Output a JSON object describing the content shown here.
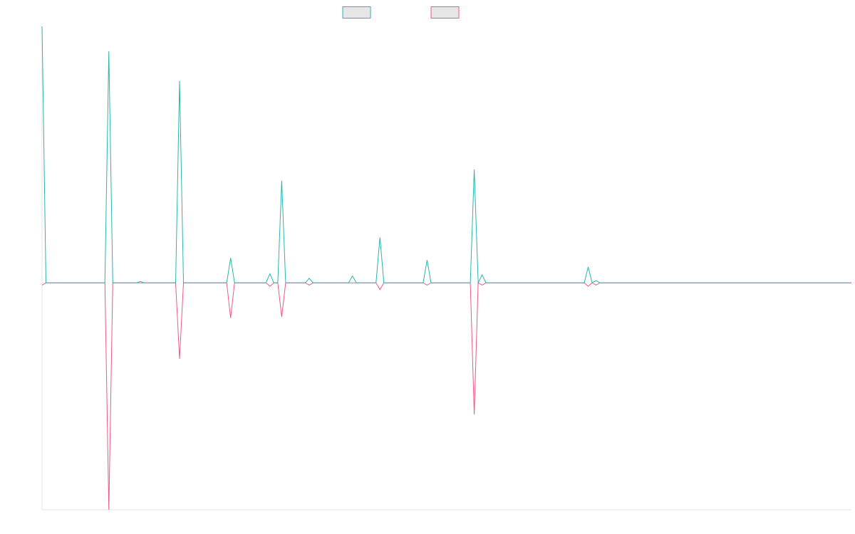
{
  "chart_data": {
    "type": "line",
    "title": "",
    "xlabel": "",
    "ylabel": "",
    "grid": false,
    "legend_position": "top-center",
    "x": [
      0,
      1,
      2,
      3,
      4,
      5,
      6,
      7,
      8,
      9,
      10,
      11,
      12,
      13,
      14,
      15,
      16,
      17,
      18,
      19,
      20,
      21,
      22,
      23,
      24,
      25,
      26,
      27,
      28,
      29,
      30,
      31,
      32,
      33,
      34,
      35,
      36,
      37,
      38,
      39,
      40,
      41,
      42,
      43,
      44,
      45,
      46,
      47,
      48,
      49,
      50,
      51,
      52,
      53,
      54,
      55,
      56,
      57,
      58,
      59,
      60,
      61,
      62,
      63,
      64,
      65,
      66,
      67,
      68,
      69,
      70,
      71,
      72,
      73,
      74,
      75,
      76,
      77,
      78,
      79,
      80,
      81,
      82,
      83,
      84,
      85,
      86,
      87,
      88,
      89,
      90,
      91,
      92,
      93,
      94,
      95,
      96,
      97,
      98,
      99,
      100,
      101,
      102,
      103,
      104,
      105,
      106,
      107,
      108,
      109,
      110,
      111,
      112,
      113,
      114,
      115,
      116,
      117,
      118,
      119,
      120,
      121,
      122,
      123,
      124,
      125,
      126,
      127,
      128,
      129,
      130,
      131,
      132,
      133,
      134,
      135,
      136,
      137,
      138,
      139,
      140,
      141,
      142,
      143,
      144,
      145,
      146,
      147,
      148,
      149,
      150,
      151,
      152,
      153,
      154,
      155,
      156,
      157,
      158,
      159,
      160,
      161,
      162,
      163,
      164,
      165,
      166,
      167,
      168,
      169,
      170,
      171,
      172,
      173,
      174,
      175,
      176,
      177,
      178,
      179,
      180,
      181,
      182,
      183,
      184,
      185,
      186,
      187,
      188,
      189,
      190,
      191,
      192,
      193,
      194,
      195,
      196,
      197,
      198,
      199,
      200,
      201,
      202,
      203,
      204,
      205,
      206
    ],
    "xlim": [
      0,
      206
    ],
    "ylim": [
      -100,
      113
    ],
    "series": [
      {
        "name": "",
        "color": "#2bb5ad",
        "values": [
          113,
          0,
          0,
          0,
          0,
          0,
          0,
          0,
          0,
          0,
          0,
          0,
          0,
          0,
          0,
          0,
          0,
          102,
          0,
          0,
          0,
          0,
          0,
          0,
          0,
          0.6,
          0,
          0,
          0,
          0,
          0,
          0,
          0,
          0,
          0,
          89,
          0,
          0,
          0,
          0,
          0,
          0,
          0,
          0,
          0,
          0,
          0,
          0,
          11,
          0,
          0,
          0,
          0,
          0,
          0,
          0,
          0,
          0,
          4,
          0,
          0,
          45,
          0,
          0,
          0,
          0,
          0,
          0,
          2,
          0,
          0,
          0,
          0,
          0,
          0,
          0,
          0,
          0,
          0,
          3,
          0,
          0,
          0,
          0,
          0,
          0,
          20,
          0,
          0,
          0,
          0,
          0,
          0,
          0,
          0,
          0,
          0,
          0,
          10,
          0,
          0,
          0,
          0,
          0,
          0,
          0,
          0,
          0,
          0,
          0,
          50,
          0,
          3.5,
          0,
          0,
          0,
          0,
          0,
          0,
          0,
          0,
          0,
          0,
          0,
          0,
          0,
          0,
          0,
          0,
          0,
          0,
          0,
          0,
          0,
          0,
          0,
          0,
          0,
          0,
          7,
          0,
          1,
          0,
          0,
          0,
          0,
          0,
          0,
          0,
          0,
          0,
          0,
          0,
          0,
          0,
          0,
          0,
          0,
          0,
          0,
          0,
          0,
          0,
          0,
          0,
          0,
          0,
          0,
          0,
          0,
          0,
          0,
          0,
          0,
          0,
          0,
          0,
          0,
          0,
          0,
          0,
          0,
          0,
          0,
          0,
          0,
          0,
          0,
          0,
          0,
          0,
          0,
          0,
          0,
          0,
          0,
          0,
          0,
          0,
          0,
          0,
          0,
          0,
          0,
          0,
          0,
          0
        ]
      },
      {
        "name": "",
        "color": "#ec5a84",
        "values": [
          -1,
          0,
          0,
          0,
          0,
          0,
          0,
          0,
          0,
          0,
          0,
          0,
          0,
          0,
          0,
          0,
          0,
          -100,
          0,
          0,
          0,
          0,
          0,
          0,
          0,
          0,
          0,
          0,
          0,
          0,
          0,
          0,
          0,
          0,
          0,
          -33.5,
          0,
          0,
          0,
          0,
          0,
          0,
          0,
          0,
          0,
          0,
          0,
          0,
          -15.5,
          0,
          0,
          0,
          0,
          0,
          0,
          0,
          0,
          0,
          -1.5,
          0,
          0,
          -15,
          0,
          0,
          0,
          0,
          0,
          0,
          -1,
          0,
          0,
          0,
          0,
          0,
          0,
          0,
          0,
          0,
          0,
          0,
          0,
          0,
          0,
          0,
          0,
          0,
          -3,
          0,
          0,
          0,
          0,
          0,
          0,
          0,
          0,
          0,
          0,
          0,
          -1,
          0,
          0,
          0,
          0,
          0,
          0,
          0,
          0,
          0,
          0,
          0,
          -58,
          0,
          -1,
          0,
          0,
          0,
          0,
          0,
          0,
          0,
          0,
          0,
          0,
          0,
          0,
          0,
          0,
          0,
          0,
          0,
          0,
          0,
          0,
          0,
          0,
          0,
          0,
          0,
          0,
          -1.5,
          0,
          -1,
          0,
          0,
          0,
          0,
          0,
          0,
          0,
          0,
          0,
          0,
          0,
          0,
          0,
          0,
          0,
          0,
          0,
          0,
          0,
          0,
          0,
          0,
          0,
          0,
          0,
          0,
          0,
          0,
          0,
          0,
          0,
          0,
          0,
          0,
          0,
          0,
          0,
          0,
          0,
          0,
          0,
          0,
          0,
          0,
          0,
          0,
          0,
          0,
          0,
          0,
          0,
          0,
          0,
          0,
          0,
          0,
          0,
          0,
          0,
          0,
          0,
          0,
          0,
          0,
          0
        ]
      }
    ]
  }
}
